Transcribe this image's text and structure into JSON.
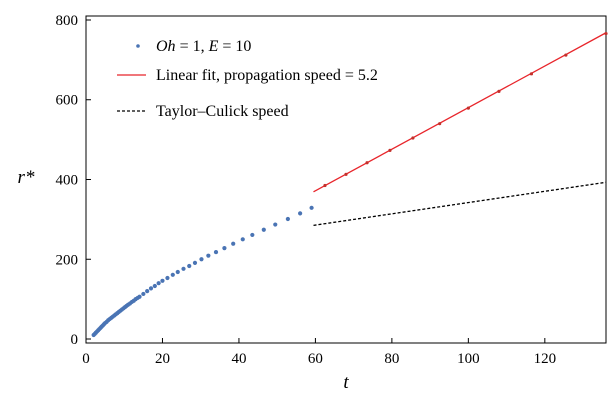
{
  "chart_data": {
    "type": "scatter",
    "xlabel": "t",
    "ylabel": "r*",
    "xlim": [
      0,
      136
    ],
    "ylim": [
      -10,
      810
    ],
    "x_ticks": [
      0,
      20,
      40,
      60,
      80,
      100,
      120
    ],
    "y_ticks": [
      0,
      200,
      400,
      600,
      800
    ],
    "grid": false,
    "legend_position": "top-left",
    "legend": [
      {
        "label_parts": [
          {
            "text": "Oh",
            "italic": true
          },
          {
            "text": " = 1, ",
            "italic": false
          },
          {
            "text": "E",
            "italic": true
          },
          {
            "text": " = 10",
            "italic": false
          }
        ],
        "style": "dot",
        "color": "#4a74b4"
      },
      {
        "label_parts": [
          {
            "text": "Linear fit, propagation speed = 5.2",
            "italic": false
          }
        ],
        "style": "solid",
        "color": "#e8252b"
      },
      {
        "label_parts": [
          {
            "text": "Taylor–Culick speed",
            "italic": false
          }
        ],
        "style": "dashed",
        "color": "#000000"
      }
    ],
    "series": [
      {
        "name": "Oh = 1, E = 10",
        "kind": "scatter",
        "color": "#4a74b4",
        "x": [
          2.0,
          2.3,
          2.6,
          2.9,
          3.2,
          3.5,
          3.8,
          4.1,
          4.4,
          4.7,
          5.0,
          5.4,
          5.8,
          6.2,
          6.6,
          7.0,
          7.4,
          7.8,
          8.2,
          8.6,
          9.0,
          9.4,
          9.8,
          10.2,
          10.6,
          11.0,
          11.5,
          12.0,
          12.5,
          13.0,
          13.5,
          14.0,
          15.0,
          16.0,
          17.0,
          18.0,
          19.0,
          20.0,
          21.3,
          22.7,
          24.0,
          25.5,
          27.0,
          28.5,
          30.2,
          32.0,
          34.0,
          36.2,
          38.5,
          41.0,
          43.5,
          46.5,
          49.5,
          52.8,
          56.0,
          59.0
        ],
        "y": [
          10,
          13,
          16,
          19,
          22,
          25,
          28,
          31,
          34,
          37,
          40,
          43,
          47,
          50,
          53,
          56,
          59,
          62,
          65,
          68,
          71,
          74,
          77,
          80,
          83,
          86,
          89,
          93,
          96,
          100,
          103,
          106,
          113,
          120,
          127,
          133,
          140,
          146,
          153,
          161,
          168,
          176,
          183,
          191,
          200,
          209,
          218,
          228,
          239,
          250,
          261,
          274,
          287,
          301,
          315,
          329
        ]
      },
      {
        "name": "Oh = 1, E = 10",
        "kind": "scatter-small",
        "color": "#c4302b",
        "x": [
          62.5,
          68,
          73.5,
          79.5,
          85.5,
          92.5,
          100,
          108,
          116.5,
          125.5,
          136
        ],
        "y": [
          385,
          413,
          442,
          473,
          504,
          540,
          579,
          621,
          665,
          712,
          766
        ]
      },
      {
        "name": "Linear fit, propagation speed = 5.2",
        "kind": "line",
        "color": "#e8252b",
        "x": [
          59.5,
          136
        ],
        "y": [
          369,
          768
        ]
      },
      {
        "name": "Taylor–Culick speed",
        "kind": "dashed",
        "color": "#000000",
        "x": [
          59.5,
          136
        ],
        "y": [
          285,
          393
        ]
      }
    ]
  }
}
